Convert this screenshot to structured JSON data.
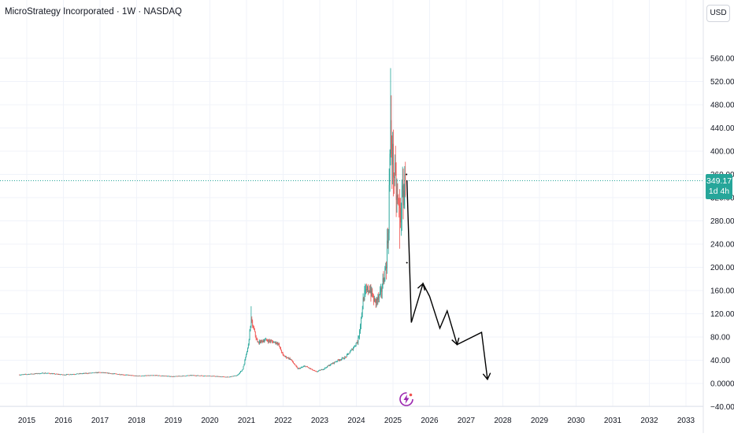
{
  "header": {
    "title": "MicroStrategy Incorporated · 1W · NASDAQ"
  },
  "axis": {
    "currency_label": "USD"
  },
  "last_price": {
    "value": "349.17",
    "countdown": "1d 4h",
    "level": 349.17
  },
  "colors": {
    "up": "#26a69a",
    "down": "#ef5350",
    "grid": "#f0f3fa",
    "price_line": "#26a69a",
    "drawing": "#000000",
    "logo": "#9c27b0"
  },
  "logo": {
    "icon": "lightning-bolt-icon"
  },
  "chart_data": {
    "type": "candlestick",
    "title": "MicroStrategy Incorporated · 1W · NASDAQ",
    "xlim": [
      2014.8,
      2033.6
    ],
    "ylim": [
      -40,
      580
    ],
    "x_ticks": [
      "2015",
      "2016",
      "2017",
      "2018",
      "2019",
      "2020",
      "2021",
      "2022",
      "2023",
      "2024",
      "2025",
      "2026",
      "2027",
      "2028",
      "2029",
      "2030",
      "2031",
      "2032",
      "2033"
    ],
    "y_ticks": [
      "560.00",
      "520.00",
      "480.00",
      "440.00",
      "400.00",
      "360.00",
      "320.00",
      "280.00",
      "240.00",
      "200.00",
      "160.00",
      "120.00",
      "80.00",
      "40.00",
      "0.0000",
      "−40.00"
    ],
    "grid": true,
    "price_anchors": [
      [
        2014.8,
        15
      ],
      [
        2015.5,
        18
      ],
      [
        2016.0,
        15
      ],
      [
        2016.5,
        17
      ],
      [
        2017.0,
        19
      ],
      [
        2017.5,
        16
      ],
      [
        2018.0,
        13
      ],
      [
        2018.5,
        14
      ],
      [
        2019.0,
        12
      ],
      [
        2019.5,
        14
      ],
      [
        2020.0,
        13
      ],
      [
        2020.5,
        11
      ],
      [
        2020.75,
        14
      ],
      [
        2020.9,
        25
      ],
      [
        2021.05,
        65
      ],
      [
        2021.12,
        110
      ],
      [
        2021.3,
        70
      ],
      [
        2021.5,
        75
      ],
      [
        2021.7,
        72
      ],
      [
        2021.85,
        70
      ],
      [
        2022.0,
        48
      ],
      [
        2022.2,
        42
      ],
      [
        2022.4,
        25
      ],
      [
        2022.6,
        30
      ],
      [
        2022.9,
        20
      ],
      [
        2023.1,
        25
      ],
      [
        2023.3,
        33
      ],
      [
        2023.5,
        40
      ],
      [
        2023.7,
        45
      ],
      [
        2023.9,
        60
      ],
      [
        2024.05,
        75
      ],
      [
        2024.2,
        150
      ],
      [
        2024.35,
        165
      ],
      [
        2024.5,
        140
      ],
      [
        2024.65,
        150
      ],
      [
        2024.8,
        200
      ],
      [
        2024.87,
        260
      ],
      [
        2024.93,
        430
      ],
      [
        2025.0,
        380
      ],
      [
        2025.1,
        320
      ],
      [
        2025.2,
        290
      ],
      [
        2025.28,
        330
      ],
      [
        2025.35,
        349.17
      ]
    ],
    "projection_path": [
      [
        2025.38,
        350
      ],
      [
        2025.5,
        105
      ],
      [
        2025.82,
        172
      ],
      [
        2026.0,
        150
      ],
      [
        2026.28,
        95
      ],
      [
        2026.48,
        125
      ],
      [
        2026.75,
        67
      ],
      [
        2027.42,
        88
      ],
      [
        2027.58,
        7
      ]
    ],
    "projection_arrowheads": [
      [
        2025.82,
        172
      ],
      [
        2026.75,
        67
      ],
      [
        2027.58,
        7
      ]
    ]
  }
}
